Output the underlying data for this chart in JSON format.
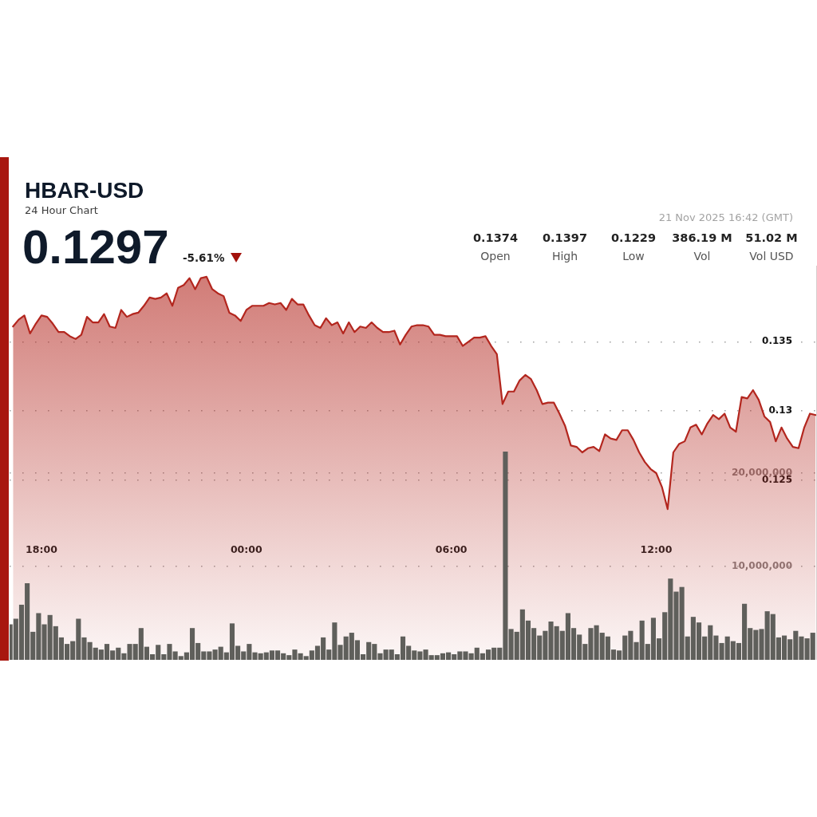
{
  "chart_data": {
    "type": "area",
    "title": "HBAR-USD",
    "subtitle": "24 Hour Chart",
    "annotations": [
      "0.1297",
      "-5.61%",
      "21 Nov 2025 16:42 (GMT)",
      "0.1374",
      "Open",
      "0.1397",
      "High",
      "0.1229",
      "Low",
      "386.19 M",
      "Vol",
      "51.02 M",
      "Vol USD"
    ],
    "xlim": [
      "2025-11-20T17:04",
      "2025-11-21T16:41"
    ],
    "xticks": [
      {
        "value": "2025-11-20T18:00",
        "label": "18:00"
      },
      {
        "value": "2025-11-21T00:00",
        "label": "00:00"
      },
      {
        "value": "2025-11-21T06:00",
        "label": "06:00"
      },
      {
        "value": "2025-11-21T12:00",
        "label": "12:00"
      }
    ],
    "ylim": [
      0.112,
      0.1405
    ],
    "yticks": [
      {
        "value": 0.125,
        "label": "0.125"
      },
      {
        "value": 0.13,
        "label": "0.13"
      },
      {
        "value": 0.135,
        "label": "0.135"
      }
    ],
    "y2lim": [
      0,
      42200000
    ],
    "y2ticks": [
      {
        "value": 10000000,
        "label": "10,000,000"
      },
      {
        "value": 20000000,
        "label": "20,000,000"
      }
    ],
    "grid": "y",
    "marker": "none",
    "series": [
      {
        "color": "#b3261e",
        "x": [
          "2025-11-20T17:10",
          "2025-11-20T17:20",
          "2025-11-20T17:30",
          "2025-11-20T17:40",
          "2025-11-20T17:50",
          "2025-11-20T18:00",
          "2025-11-20T18:10",
          "2025-11-20T18:20",
          "2025-11-20T18:30",
          "2025-11-20T18:40",
          "2025-11-20T18:50",
          "2025-11-20T19:00",
          "2025-11-20T19:10",
          "2025-11-20T19:20",
          "2025-11-20T19:30",
          "2025-11-20T19:40",
          "2025-11-20T19:50",
          "2025-11-20T20:00",
          "2025-11-20T20:10",
          "2025-11-20T20:20",
          "2025-11-20T20:30",
          "2025-11-20T20:40",
          "2025-11-20T20:50",
          "2025-11-20T21:00",
          "2025-11-20T21:10",
          "2025-11-20T21:20",
          "2025-11-20T21:30",
          "2025-11-20T21:40",
          "2025-11-20T21:50",
          "2025-11-20T22:00",
          "2025-11-20T22:10",
          "2025-11-20T22:20",
          "2025-11-20T22:30",
          "2025-11-20T22:40",
          "2025-11-20T22:50",
          "2025-11-20T23:00",
          "2025-11-20T23:10",
          "2025-11-20T23:20",
          "2025-11-20T23:30",
          "2025-11-20T23:40",
          "2025-11-20T23:50",
          "2025-11-21T00:00",
          "2025-11-21T00:10",
          "2025-11-21T00:20",
          "2025-11-21T00:30",
          "2025-11-21T00:40",
          "2025-11-21T00:50",
          "2025-11-21T01:00",
          "2025-11-21T01:10",
          "2025-11-21T01:20",
          "2025-11-21T01:30",
          "2025-11-21T01:40",
          "2025-11-21T01:50",
          "2025-11-21T02:00",
          "2025-11-21T02:10",
          "2025-11-21T02:20",
          "2025-11-21T02:30",
          "2025-11-21T02:40",
          "2025-11-21T02:50",
          "2025-11-21T03:00",
          "2025-11-21T03:10",
          "2025-11-21T03:20",
          "2025-11-21T03:30",
          "2025-11-21T03:40",
          "2025-11-21T03:50",
          "2025-11-21T04:00",
          "2025-11-21T04:10",
          "2025-11-21T04:20",
          "2025-11-21T04:30",
          "2025-11-21T04:40",
          "2025-11-21T04:50",
          "2025-11-21T05:00",
          "2025-11-21T05:10",
          "2025-11-21T05:20",
          "2025-11-21T05:30",
          "2025-11-21T05:40",
          "2025-11-21T05:50",
          "2025-11-21T06:00",
          "2025-11-21T06:10",
          "2025-11-21T06:20",
          "2025-11-21T06:30",
          "2025-11-21T06:40",
          "2025-11-21T06:50",
          "2025-11-21T07:00",
          "2025-11-21T07:10",
          "2025-11-21T07:20",
          "2025-11-21T07:30",
          "2025-11-21T07:40",
          "2025-11-21T07:50",
          "2025-11-21T08:00",
          "2025-11-21T08:10",
          "2025-11-21T08:20",
          "2025-11-21T08:30",
          "2025-11-21T08:40",
          "2025-11-21T08:50",
          "2025-11-21T09:00",
          "2025-11-21T09:10",
          "2025-11-21T09:20",
          "2025-11-21T09:30",
          "2025-11-21T09:40",
          "2025-11-21T09:50",
          "2025-11-21T10:00",
          "2025-11-21T10:10",
          "2025-11-21T10:20",
          "2025-11-21T10:30",
          "2025-11-21T10:40",
          "2025-11-21T10:50",
          "2025-11-21T11:00",
          "2025-11-21T11:10",
          "2025-11-21T11:20",
          "2025-11-21T11:30",
          "2025-11-21T11:40",
          "2025-11-21T11:50",
          "2025-11-21T12:00",
          "2025-11-21T12:10",
          "2025-11-21T12:20",
          "2025-11-21T12:30",
          "2025-11-21T12:40",
          "2025-11-21T12:50",
          "2025-11-21T13:00",
          "2025-11-21T13:10",
          "2025-11-21T13:20",
          "2025-11-21T13:30",
          "2025-11-21T13:40",
          "2025-11-21T13:50",
          "2025-11-21T14:00",
          "2025-11-21T14:10",
          "2025-11-21T14:20",
          "2025-11-21T14:30",
          "2025-11-21T14:40",
          "2025-11-21T14:50",
          "2025-11-21T15:00",
          "2025-11-21T15:10",
          "2025-11-21T15:20",
          "2025-11-21T15:30",
          "2025-11-21T15:40",
          "2025-11-21T15:50",
          "2025-11-21T16:00",
          "2025-11-21T16:10",
          "2025-11-21T16:20",
          "2025-11-21T16:30",
          "2025-11-21T16:40"
        ],
        "values": [
          0.1361,
          0.1366,
          0.1369,
          0.1356,
          0.1363,
          0.1369,
          0.1368,
          0.1363,
          0.1357,
          0.1357,
          0.1354,
          0.1352,
          0.1355,
          0.1368,
          0.1364,
          0.1364,
          0.137,
          0.1361,
          0.136,
          0.1373,
          0.1368,
          0.137,
          0.1371,
          0.1376,
          0.1382,
          0.1381,
          0.1382,
          0.1385,
          0.1376,
          0.1389,
          0.1391,
          0.1396,
          0.1388,
          0.1396,
          0.1397,
          0.1388,
          0.1385,
          0.1383,
          0.1371,
          0.1369,
          0.1365,
          0.1373,
          0.1376,
          0.1376,
          0.1376,
          0.1378,
          0.1377,
          0.1378,
          0.1373,
          0.1381,
          0.1377,
          0.1377,
          0.1369,
          0.1362,
          0.136,
          0.1367,
          0.1362,
          0.1364,
          0.1356,
          0.1364,
          0.1357,
          0.1361,
          0.136,
          0.1364,
          0.136,
          0.1357,
          0.1357,
          0.1358,
          0.1348,
          0.1355,
          0.1361,
          0.1362,
          0.1362,
          0.1361,
          0.1355,
          0.1355,
          0.1354,
          0.1354,
          0.1354,
          0.1347,
          0.135,
          0.1353,
          0.1353,
          0.1354,
          0.1347,
          0.1341,
          0.1305,
          0.1314,
          0.1314,
          0.1322,
          0.1326,
          0.1323,
          0.1315,
          0.1305,
          0.1306,
          0.1306,
          0.1298,
          0.1289,
          0.1275,
          0.1274,
          0.127,
          0.1273,
          0.1274,
          0.1271,
          0.1283,
          0.128,
          0.1279,
          0.1286,
          0.1286,
          0.1279,
          0.127,
          0.1263,
          0.1258,
          0.1255,
          0.1245,
          0.1229,
          0.127,
          0.1276,
          0.1278,
          0.1288,
          0.129,
          0.1283,
          0.1291,
          0.1297,
          0.1294,
          0.1298,
          0.1288,
          0.1285,
          0.131,
          0.1309,
          0.1315,
          0.1308,
          0.1296,
          0.1292,
          0.1278,
          0.1288,
          0.128,
          0.1274,
          0.1273,
          0.1288,
          0.1298,
          0.1297
        ]
      },
      {
        "type": "bar",
        "axis": "y2",
        "color": "#5f5f5b",
        "x": [
          "2025-11-20T17:05",
          "2025-11-20T17:15",
          "2025-11-20T17:25",
          "2025-11-20T17:35",
          "2025-11-20T17:45",
          "2025-11-20T17:55",
          "2025-11-20T18:05",
          "2025-11-20T18:15",
          "2025-11-20T18:25",
          "2025-11-20T18:35",
          "2025-11-20T18:45",
          "2025-11-20T18:55",
          "2025-11-20T19:05",
          "2025-11-20T19:15",
          "2025-11-20T19:25",
          "2025-11-20T19:35",
          "2025-11-20T19:45",
          "2025-11-20T19:55",
          "2025-11-20T20:05",
          "2025-11-20T20:15",
          "2025-11-20T20:25",
          "2025-11-20T20:35",
          "2025-11-20T20:45",
          "2025-11-20T20:55",
          "2025-11-20T21:05",
          "2025-11-20T21:15",
          "2025-11-20T21:25",
          "2025-11-20T21:35",
          "2025-11-20T21:45",
          "2025-11-20T21:55",
          "2025-11-20T22:05",
          "2025-11-20T22:15",
          "2025-11-20T22:25",
          "2025-11-20T22:35",
          "2025-11-20T22:45",
          "2025-11-20T22:55",
          "2025-11-20T23:05",
          "2025-11-20T23:15",
          "2025-11-20T23:25",
          "2025-11-20T23:35",
          "2025-11-20T23:45",
          "2025-11-20T23:55",
          "2025-11-21T00:05",
          "2025-11-21T00:15",
          "2025-11-21T00:25",
          "2025-11-21T00:35",
          "2025-11-21T00:45",
          "2025-11-21T00:55",
          "2025-11-21T01:05",
          "2025-11-21T01:15",
          "2025-11-21T01:25",
          "2025-11-21T01:35",
          "2025-11-21T01:45",
          "2025-11-21T01:55",
          "2025-11-21T02:05",
          "2025-11-21T02:15",
          "2025-11-21T02:25",
          "2025-11-21T02:35",
          "2025-11-21T02:45",
          "2025-11-21T02:55",
          "2025-11-21T03:05",
          "2025-11-21T03:15",
          "2025-11-21T03:25",
          "2025-11-21T03:35",
          "2025-11-21T03:45",
          "2025-11-21T03:55",
          "2025-11-21T04:05",
          "2025-11-21T04:15",
          "2025-11-21T04:25",
          "2025-11-21T04:35",
          "2025-11-21T04:45",
          "2025-11-21T04:55",
          "2025-11-21T05:05",
          "2025-11-21T05:15",
          "2025-11-21T05:25",
          "2025-11-21T05:35",
          "2025-11-21T05:45",
          "2025-11-21T05:55",
          "2025-11-21T06:05",
          "2025-11-21T06:15",
          "2025-11-21T06:25",
          "2025-11-21T06:35",
          "2025-11-21T06:45",
          "2025-11-21T06:55",
          "2025-11-21T07:05",
          "2025-11-21T07:15",
          "2025-11-21T07:25",
          "2025-11-21T07:35",
          "2025-11-21T07:45",
          "2025-11-21T07:55",
          "2025-11-21T08:05",
          "2025-11-21T08:15",
          "2025-11-21T08:25",
          "2025-11-21T08:35",
          "2025-11-21T08:45",
          "2025-11-21T08:55",
          "2025-11-21T09:05",
          "2025-11-21T09:15",
          "2025-11-21T09:25",
          "2025-11-21T09:35",
          "2025-11-21T09:45",
          "2025-11-21T09:55",
          "2025-11-21T10:05",
          "2025-11-21T10:15",
          "2025-11-21T10:25",
          "2025-11-21T10:35",
          "2025-11-21T10:45",
          "2025-11-21T10:55",
          "2025-11-21T11:05",
          "2025-11-21T11:15",
          "2025-11-21T11:25",
          "2025-11-21T11:35",
          "2025-11-21T11:45",
          "2025-11-21T11:55",
          "2025-11-21T12:05",
          "2025-11-21T12:15",
          "2025-11-21T12:25",
          "2025-11-21T12:35",
          "2025-11-21T12:45",
          "2025-11-21T12:55",
          "2025-11-21T13:05",
          "2025-11-21T13:15",
          "2025-11-21T13:25",
          "2025-11-21T13:35",
          "2025-11-21T13:45",
          "2025-11-21T13:55",
          "2025-11-21T14:05",
          "2025-11-21T14:15",
          "2025-11-21T14:25",
          "2025-11-21T14:35",
          "2025-11-21T14:45",
          "2025-11-21T14:55",
          "2025-11-21T15:05",
          "2025-11-21T15:15",
          "2025-11-21T15:25",
          "2025-11-21T15:35",
          "2025-11-21T15:45",
          "2025-11-21T15:55",
          "2025-11-21T16:05",
          "2025-11-21T16:15",
          "2025-11-21T16:25",
          "2025-11-21T16:35"
        ],
        "values": [
          3800000,
          4400000,
          5900000,
          8200000,
          3000000,
          5000000,
          3800000,
          4800000,
          3600000,
          2400000,
          1700000,
          2000000,
          4400000,
          2400000,
          1900000,
          1300000,
          1100000,
          1700000,
          1000000,
          1300000,
          700000,
          1700000,
          1700000,
          3400000,
          1400000,
          600000,
          1600000,
          600000,
          1700000,
          900000,
          400000,
          800000,
          3400000,
          1800000,
          900000,
          900000,
          1100000,
          1400000,
          800000,
          3900000,
          1500000,
          900000,
          1700000,
          800000,
          700000,
          800000,
          1000000,
          1000000,
          700000,
          500000,
          1100000,
          700000,
          400000,
          1000000,
          1500000,
          2400000,
          1100000,
          4000000,
          1600000,
          2500000,
          2900000,
          2100000,
          600000,
          1900000,
          1700000,
          700000,
          1100000,
          1100000,
          600000,
          2500000,
          1500000,
          1000000,
          900000,
          1100000,
          500000,
          500000,
          700000,
          800000,
          600000,
          900000,
          900000,
          700000,
          1300000,
          700000,
          1100000,
          1300000,
          1300000,
          22300000,
          3300000,
          3000000,
          5400000,
          4200000,
          3400000,
          2600000,
          3100000,
          4100000,
          3600000,
          3100000,
          5000000,
          3400000,
          2700000,
          1700000,
          3400000,
          3700000,
          2900000,
          2500000,
          1100000,
          1000000,
          2600000,
          3100000,
          1900000,
          4200000,
          1700000,
          4500000,
          2300000,
          5100000,
          8700000,
          7300000,
          7800000,
          2500000,
          4600000,
          4000000,
          2500000,
          3700000,
          2600000,
          1800000,
          2500000,
          2000000,
          1800000,
          6000000,
          3400000,
          3200000,
          3300000,
          5200000,
          4900000,
          2400000,
          2600000,
          2200000,
          3100000,
          2500000,
          2300000,
          2900000
        ]
      }
    ]
  }
}
